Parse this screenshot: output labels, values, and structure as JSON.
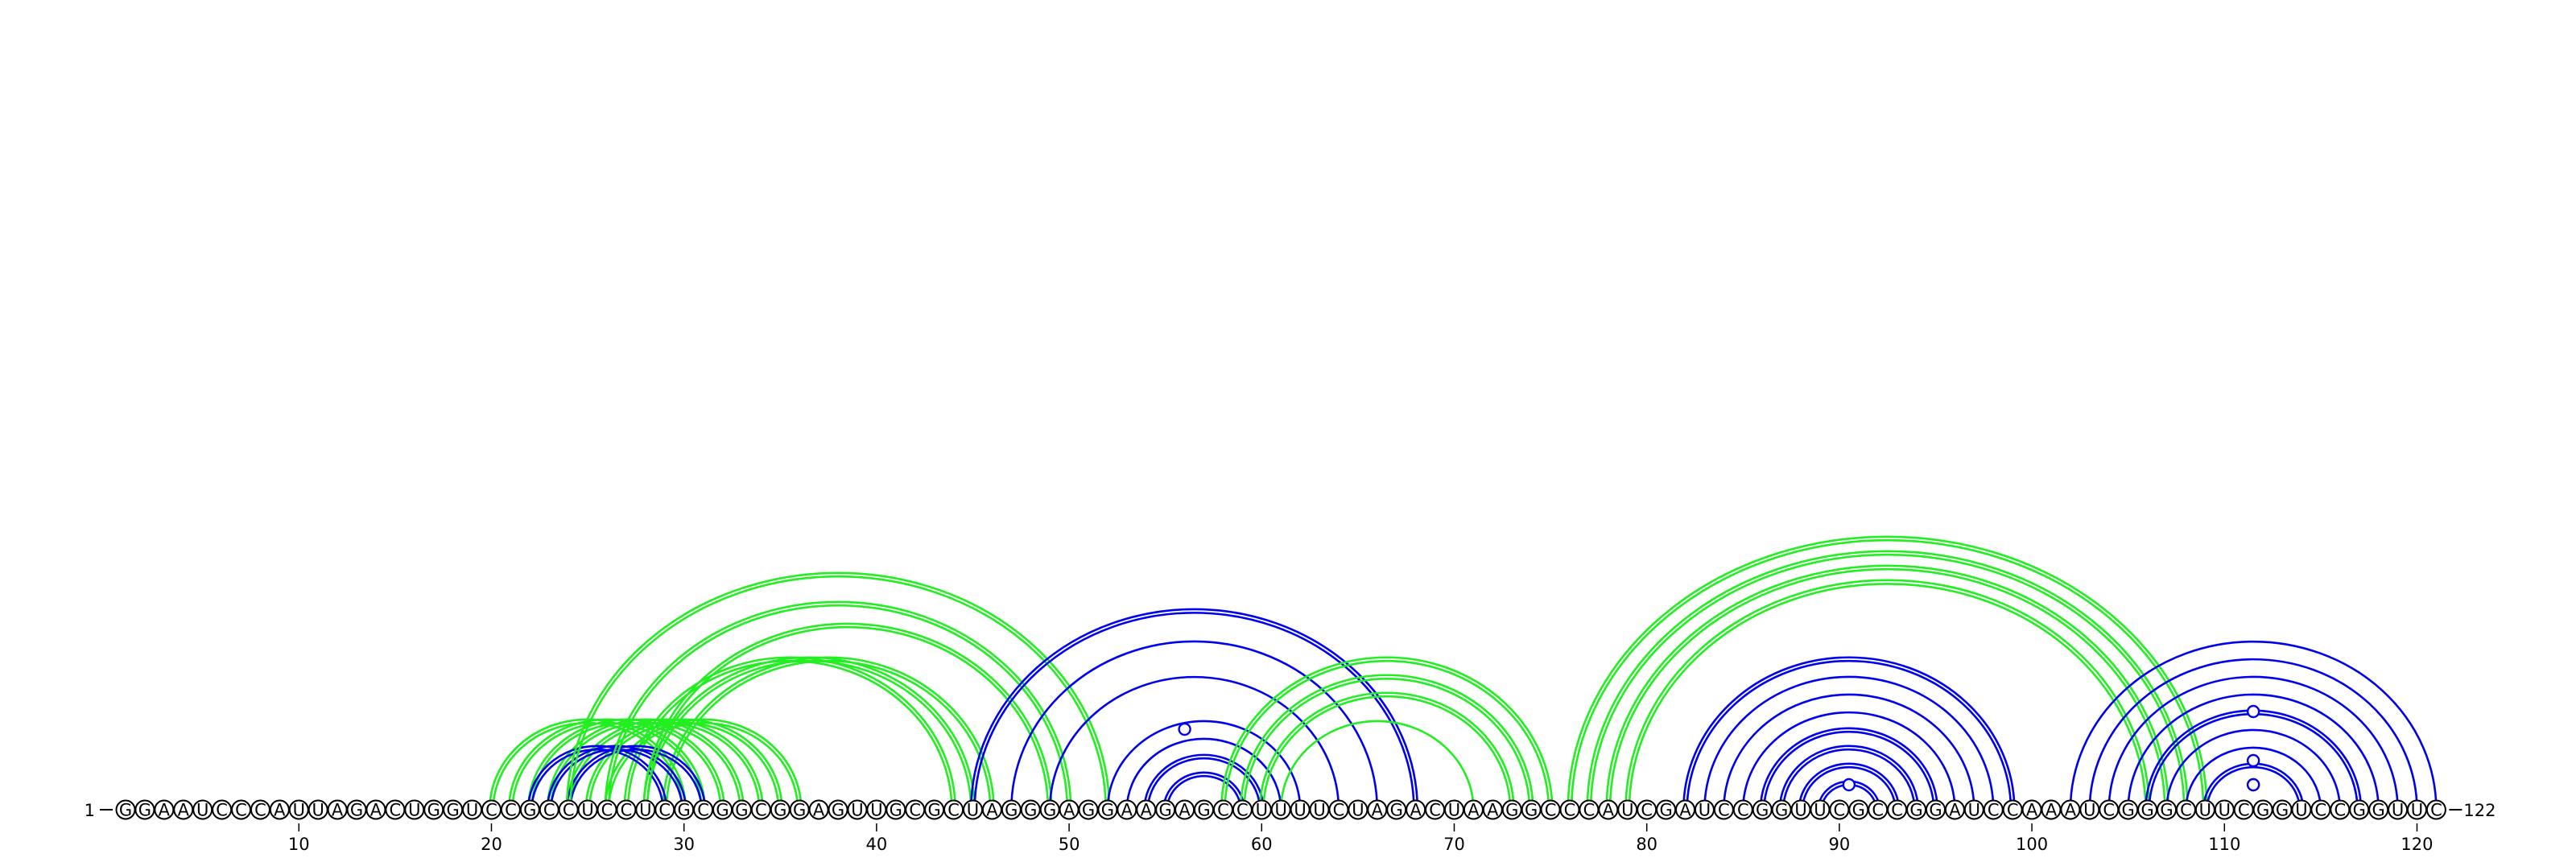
{
  "sequence": "GGAAUCCCAUUAGACUGGUCCGCCUCCUCGCGGCGGAGUUGCGCUAGGGAGGAAGAGCCUUUUCUAGACUAAGGCCCAUCGAUCCGGUUCGCCGGAUCCAAAUCGGGCUUCGGUCCGGUUC",
  "start_label": "1",
  "end_label": "122",
  "tick_labels": [
    10,
    20,
    30,
    40,
    50,
    60,
    70,
    80,
    90,
    100,
    110,
    120
  ],
  "colors": {
    "blue": "#0000ee",
    "green": "#22ee22"
  },
  "arcs": [
    {
      "i": 30,
      "j": 20,
      "color": "green",
      "double": true
    },
    {
      "i": 31,
      "j": 21,
      "color": "green",
      "double": true
    },
    {
      "i": 32,
      "j": 22,
      "color": "green",
      "double": true
    },
    {
      "i": 33,
      "j": 23,
      "color": "green",
      "double": true
    },
    {
      "i": 34,
      "j": 24,
      "color": "green",
      "double": true
    },
    {
      "i": 35,
      "j": 25,
      "color": "green",
      "double": true
    },
    {
      "i": 36,
      "j": 26,
      "color": "green",
      "double": true
    },
    {
      "i": 44,
      "j": 27,
      "color": "green",
      "double": true
    },
    {
      "i": 45,
      "j": 28,
      "color": "green",
      "double": true
    },
    {
      "i": 46,
      "j": 29,
      "color": "green",
      "double": true
    },
    {
      "i": 29,
      "j": 22,
      "color": "blue",
      "double": true
    },
    {
      "i": 30,
      "j": 23,
      "color": "blue",
      "double": true
    },
    {
      "i": 31,
      "j": 24,
      "color": "blue",
      "double": true
    },
    {
      "i": 52,
      "j": 24,
      "color": "green",
      "double": true
    },
    {
      "i": 50,
      "j": 26,
      "color": "green",
      "double": true
    },
    {
      "i": 49,
      "j": 28,
      "color": "green",
      "double": true
    },
    {
      "i": 68,
      "j": 45,
      "color": "blue",
      "double": true
    },
    {
      "i": 66,
      "j": 47,
      "color": "blue",
      "double": false
    },
    {
      "i": 64,
      "j": 49,
      "color": "blue",
      "double": false
    },
    {
      "i": 62,
      "j": 52,
      "color": "blue",
      "double": false
    },
    {
      "i": 61,
      "j": 53,
      "color": "blue",
      "double": false
    },
    {
      "i": 60,
      "j": 54,
      "color": "blue",
      "double": true
    },
    {
      "i": 59,
      "j": 55,
      "color": "blue",
      "double": true
    },
    {
      "i": 75,
      "j": 58,
      "color": "green",
      "double": true
    },
    {
      "i": 74,
      "j": 59,
      "color": "green",
      "double": true
    },
    {
      "i": 73,
      "j": 60,
      "color": "green",
      "double": true
    },
    {
      "i": 71,
      "j": 61,
      "color": "green",
      "double": false
    },
    {
      "i": 109,
      "j": 76,
      "color": "green",
      "double": true
    },
    {
      "i": 108,
      "j": 77,
      "color": "green",
      "double": true
    },
    {
      "i": 107,
      "j": 78,
      "color": "green",
      "double": true
    },
    {
      "i": 106,
      "j": 79,
      "color": "green",
      "double": true
    },
    {
      "i": 99,
      "j": 82,
      "color": "blue",
      "double": true
    },
    {
      "i": 98,
      "j": 83,
      "color": "blue",
      "double": false
    },
    {
      "i": 97,
      "j": 84,
      "color": "blue",
      "double": false
    },
    {
      "i": 96,
      "j": 85,
      "color": "blue",
      "double": false
    },
    {
      "i": 95,
      "j": 86,
      "color": "blue",
      "double": true
    },
    {
      "i": 94,
      "j": 87,
      "color": "blue",
      "double": true
    },
    {
      "i": 93,
      "j": 88,
      "color": "blue",
      "double": true
    },
    {
      "i": 92,
      "j": 89,
      "color": "blue",
      "double": true
    },
    {
      "i": 121,
      "j": 102,
      "color": "blue",
      "double": false
    },
    {
      "i": 120,
      "j": 103,
      "color": "blue",
      "double": false
    },
    {
      "i": 119,
      "j": 104,
      "color": "blue",
      "double": false
    },
    {
      "i": 118,
      "j": 105,
      "color": "blue",
      "double": false
    },
    {
      "i": 117,
      "j": 106,
      "color": "blue",
      "double": true
    },
    {
      "i": 116,
      "j": 107,
      "color": "blue",
      "double": false
    },
    {
      "i": 115,
      "j": 108,
      "color": "blue",
      "double": false
    },
    {
      "i": 114,
      "j": 109,
      "color": "blue",
      "double": true
    }
  ],
  "markers": [
    56,
    90.5,
    111.5,
    111.5,
    111.5,
    111.5
  ]
}
